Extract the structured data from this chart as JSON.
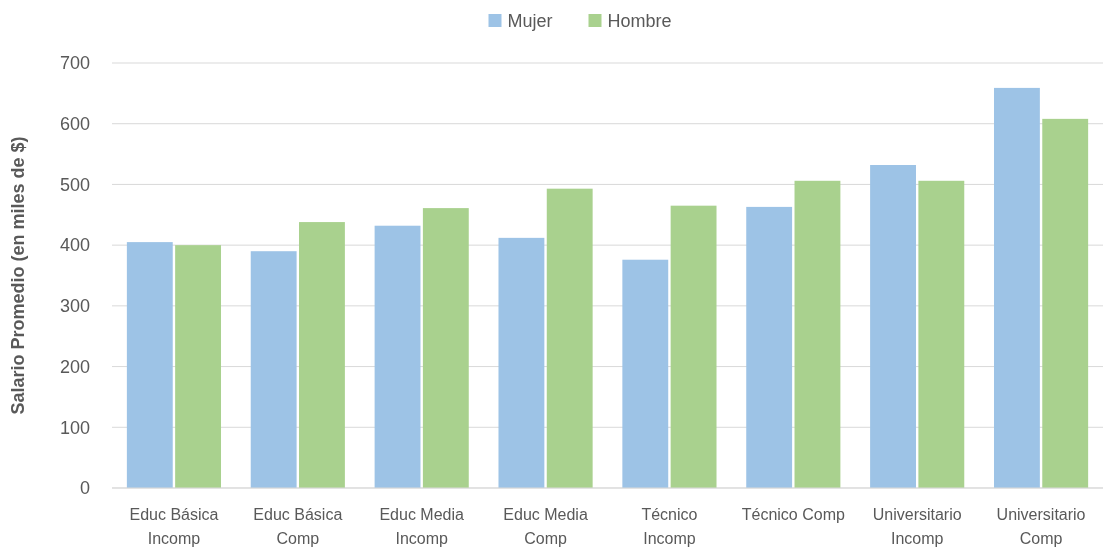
{
  "chart_data": {
    "type": "bar",
    "ylabel": "Salario Promedio (en miles de $)",
    "categories": [
      "Educ Básica Incomp",
      "Educ Básica Comp",
      "Educ Media Incomp",
      "Educ Media Comp",
      "Técnico Incomp",
      "Técnico Comp",
      "Universitario Incomp",
      "Universitario Comp"
    ],
    "series": [
      {
        "name": "Mujer",
        "color": "#9dc3e6",
        "values": [
          405,
          390,
          432,
          412,
          376,
          463,
          532,
          659
        ]
      },
      {
        "name": "Hombre",
        "color": "#a9d18e",
        "values": [
          400,
          438,
          461,
          493,
          465,
          506,
          506,
          608
        ]
      }
    ],
    "ylim": [
      0,
      700
    ],
    "yticks": [
      0,
      100,
      200,
      300,
      400,
      500,
      600,
      700
    ],
    "grid": "y",
    "legend": "top"
  }
}
